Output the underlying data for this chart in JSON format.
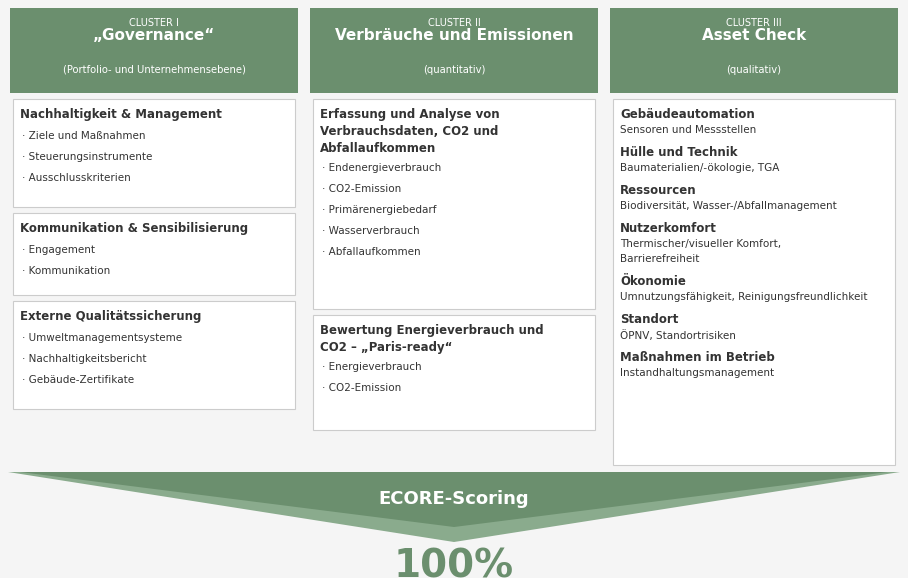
{
  "bg_color": "#f5f5f5",
  "header_green": "#6b8f6e",
  "border_color": "#cccccc",
  "text_dark": "#333333",
  "text_white": "#ffffff",
  "text_green": "#6b8f6e",
  "fig_w": 9.08,
  "fig_h": 5.78,
  "clusters": [
    {
      "id": "I",
      "title_line1": "CLUSTER I",
      "title_line2": "„Governance“",
      "title_line3": "(Portfolio- und Unternehmensebene)",
      "col": 0,
      "boxes": [
        {
          "title": "Nachhaltigkeit & Management",
          "items": [
            "Ziele und Maßnahmen",
            "Steuerungsinstrumente",
            "Ausschlusskriterien"
          ]
        },
        {
          "title": "Kommunikation & Sensibilisierung",
          "items": [
            "Engagement",
            "Kommunikation"
          ]
        },
        {
          "title": "Externe Qualitätssicherung",
          "items": [
            "Umweltmanagementsysteme",
            "Nachhaltigkeitsbericht",
            "Gebäude-Zertifikate"
          ]
        }
      ]
    },
    {
      "id": "II",
      "title_line1": "CLUSTER II",
      "title_line2": "Verbräuche und Emissionen",
      "title_line3": "(quantitativ)",
      "col": 1,
      "boxes": [
        {
          "title": "Erfassung und Analyse von\nVerbrauchsdaten, CO2 und\nAbfallaufkommen",
          "items": [
            "Endenergieverbrauch",
            "CO2-Emission",
            "Primärenergiebedarf",
            "Wasserverbrauch",
            "Abfallaufkommen"
          ]
        },
        {
          "title": "Bewertung Energieverbrauch und\nCO2 – „Paris-ready“",
          "items": [
            "Energieverbrauch",
            "CO2-Emission"
          ]
        }
      ]
    },
    {
      "id": "III",
      "title_line1": "CLUSTER III",
      "title_line2": "Asset Check",
      "title_line3": "(qualitativ)",
      "col": 2,
      "flat_items": [
        {
          "title": "Gebäudeautomation",
          "desc": "Sensoren und Messstellen"
        },
        {
          "title": "Hülle und Technik",
          "desc": "Baumaterialien/-ökologie, TGA"
        },
        {
          "title": "Ressourcen",
          "desc": "Biodiversität, Wasser-/Abfallmanagement"
        },
        {
          "title": "Nutzerkomfort",
          "desc": "Thermischer/visueller Komfort,\nBarrierefreiheit"
        },
        {
          "title": "Ökonomie",
          "desc": "Umnutzungsfähigkeit, Reinigungsfreundlichkeit"
        },
        {
          "title": "Standort",
          "desc": "ÖPNV, Standortrisiken"
        },
        {
          "title": "Maßnahmen im Betrieb",
          "desc": "Instandhaltungsmanagement"
        }
      ]
    }
  ],
  "arrow_text": "ECORE-Scoring",
  "bottom_text": "100%",
  "arrow_color_dark": "#6b8f6e",
  "arrow_color_light": "#8aab8d"
}
